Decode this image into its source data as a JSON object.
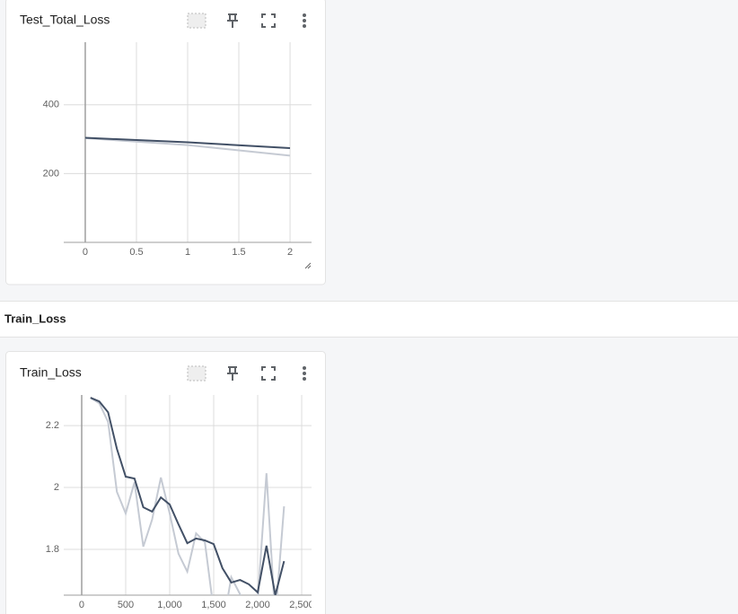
{
  "section": {
    "title": "Train_Loss"
  },
  "chart_data": [
    {
      "type": "line",
      "title": "Test_Total_Loss",
      "xlim": [
        -0.21,
        2.21
      ],
      "xticks": [
        0,
        0.5,
        1,
        1.5,
        2
      ],
      "ylim": [
        0,
        582
      ],
      "yticks": [
        200,
        400
      ],
      "grid": true,
      "series": [
        {
          "color": "#c5cad3",
          "x": [
            0,
            1,
            2
          ],
          "values": [
            303,
            283,
            252
          ]
        },
        {
          "color": "#425066",
          "x": [
            0,
            1,
            2
          ],
          "values": [
            304,
            291,
            274
          ]
        }
      ]
    },
    {
      "type": "line",
      "title": "Train_Loss",
      "xlim": [
        -204,
        2612
      ],
      "xticks": [
        0,
        500,
        {
          "value": 1000,
          "label": "1,000"
        },
        {
          "value": 1500,
          "label": "1,500"
        },
        {
          "value": 2000,
          "label": "2,000"
        },
        {
          "value": 2500,
          "label": "2,500"
        }
      ],
      "ylim": [
        1.652,
        2.299
      ],
      "yticks": [
        1.8,
        2,
        2.2
      ],
      "grid": true,
      "series": [
        {
          "color": "#c5cad3",
          "x": [
            100,
            200,
            300,
            400,
            500,
            600,
            700,
            800,
            900,
            1000,
            1100,
            1200,
            1300,
            1400,
            1500,
            1600,
            1700,
            1800,
            1900,
            2000,
            2100,
            2200,
            2300
          ],
          "values": [
            2.29,
            2.272,
            2.212,
            1.986,
            1.916,
            2.017,
            1.809,
            1.896,
            2.032,
            1.916,
            1.786,
            1.728,
            1.852,
            1.823,
            1.603,
            1.545,
            1.71,
            1.655,
            1.603,
            1.632,
            2.046,
            1.574,
            1.939
          ]
        },
        {
          "color": "#425066",
          "x": [
            100,
            200,
            300,
            400,
            500,
            600,
            700,
            800,
            900,
            1000,
            1100,
            1200,
            1300,
            1400,
            1500,
            1600,
            1700,
            1800,
            1900,
            2000,
            2100,
            2200,
            2300
          ],
          "values": [
            2.29,
            2.278,
            2.243,
            2.125,
            2.035,
            2.029,
            1.936,
            1.922,
            1.968,
            1.945,
            1.881,
            1.82,
            1.835,
            1.829,
            1.817,
            1.739,
            1.693,
            1.701,
            1.687,
            1.661,
            1.812,
            1.652,
            1.762
          ]
        }
      ]
    }
  ]
}
